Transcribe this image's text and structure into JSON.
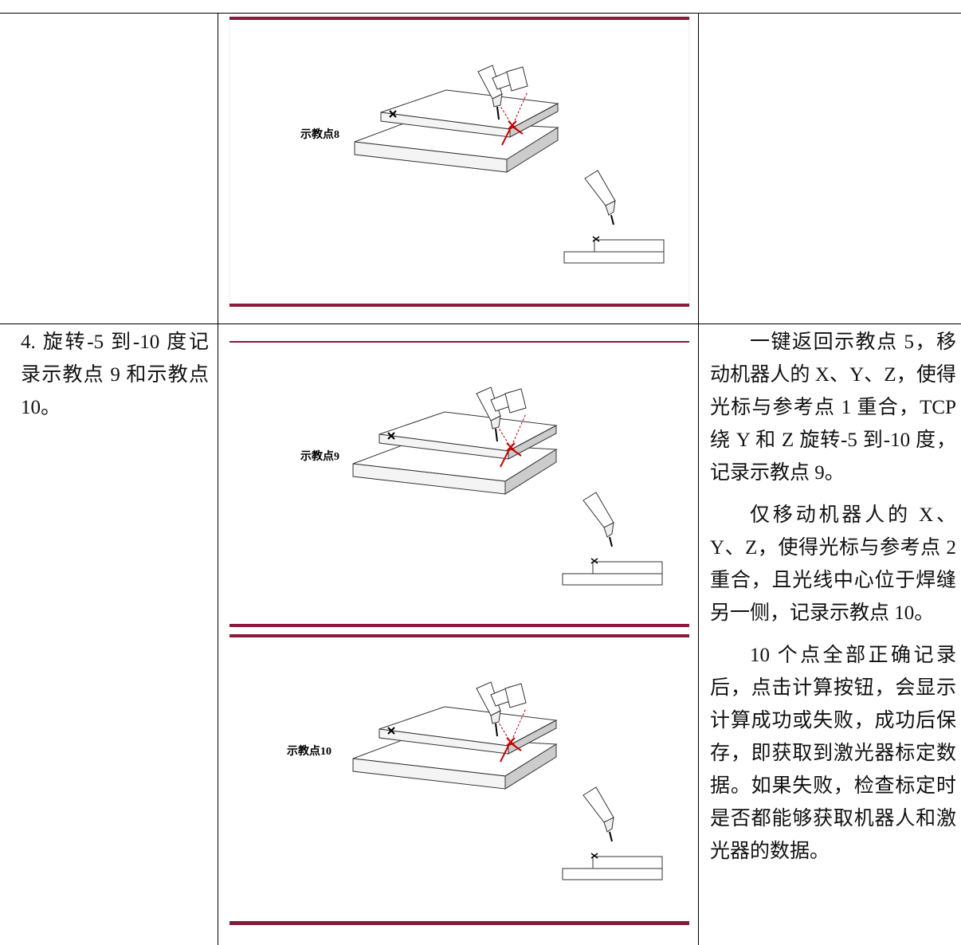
{
  "table": {
    "rows": [
      {
        "images": [
          {
            "label": "示教点8"
          }
        ]
      },
      {
        "step": "4. 旋转-5 到-10 度记录示教点 9 和示教点 10。",
        "images": [
          {
            "label": "示教点9"
          },
          {
            "label": "示教点10"
          }
        ],
        "notes": [
          "一键返回示教点 5，移动机器人的 X、Y、Z，使得光标与参考点 1 重合，TCP 绕 Y 和 Z 旋转-5 到-10 度，记录示教点 9。",
          "仅移动机器人的 X、Y、Z，使得光标与参考点 2 重合，且光线中心位于焊缝另一侧，记录示教点 10。",
          "10 个点全部正确记录后，点击计算按钮，会显示计算成功或失败，成功后保存，即获取到激光器标定数据。如果失败，检查标定时是否都能够获取机器人和激光器的数据。"
        ]
      }
    ]
  }
}
